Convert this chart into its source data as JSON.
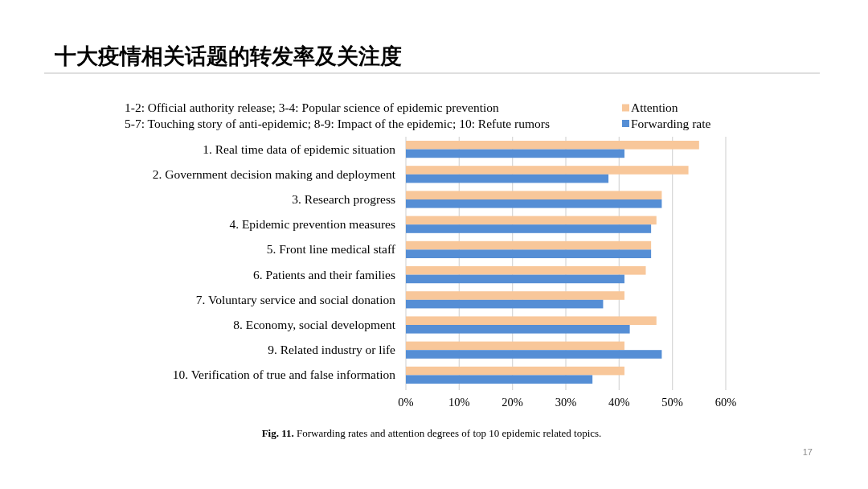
{
  "chart_data": {
    "type": "bar",
    "orientation": "horizontal",
    "title": "十大疫情相关话题的转发率及关注度",
    "annotations": [
      "1-2: Official authority release; 3-4: Popular science of epidemic prevention",
      "5-7: Touching story of anti-epidemic; 8-9: Impact of the epidemic; 10: Refute rumors",
      "**Fig. 11.** Forwarding rates and attention degrees of top 10 epidemic related topics.",
      "17"
    ],
    "categories": [
      "1. Real time data of epidemic situation",
      "2. Government decision making and deployment",
      "3. Research progress",
      "4. Epidemic prevention measures",
      "5. Front line medical staff",
      "6. Patients and their families",
      "7. Voluntary service and social donation",
      "8. Economy, social development",
      "9. Related industry or life",
      "10. Verification of true and false information"
    ],
    "series": [
      {
        "name": "Attention",
        "color": "#f8c79a",
        "values": [
          55,
          53,
          48,
          47,
          46,
          45,
          41,
          47,
          41,
          41
        ]
      },
      {
        "name": "Forwarding rate",
        "color": "#558ed5",
        "values": [
          41,
          38,
          48,
          46,
          46,
          41,
          37,
          42,
          48,
          35
        ]
      }
    ],
    "xlim": [
      0,
      60
    ],
    "xticks": [
      {
        "value": 0,
        "label": "0%"
      },
      {
        "value": 10,
        "label": "10%"
      },
      {
        "value": 20,
        "label": "20%"
      },
      {
        "value": 30,
        "label": "30%"
      },
      {
        "value": 40,
        "label": "40%"
      },
      {
        "value": 50,
        "label": "50%"
      },
      {
        "value": 60,
        "label": "60%"
      }
    ],
    "grid": "x",
    "legend": "top right"
  }
}
